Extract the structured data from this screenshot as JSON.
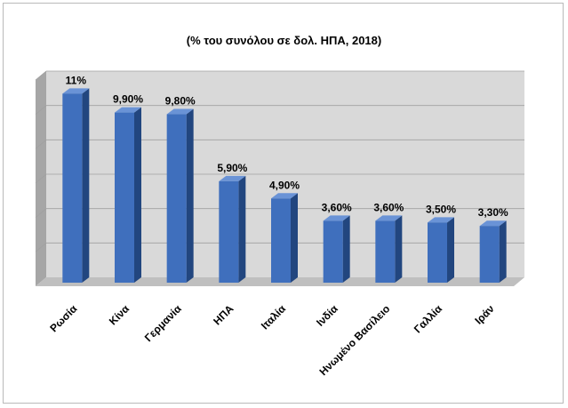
{
  "chart_data": {
    "type": "bar",
    "title": "(% του συνόλου σε δολ. ΗΠΑ, 2018)",
    "xlabel": "",
    "ylabel": "",
    "categories": [
      "Ρωσία",
      "Κίνα",
      "Γερμανία",
      "ΗΠΑ",
      "Ιταλία",
      "Ινδία",
      "Ηνωμένο Βασίλειο",
      "Γαλλία",
      "Ιράν"
    ],
    "values": [
      11,
      9.9,
      9.8,
      5.9,
      4.9,
      3.6,
      3.6,
      3.5,
      3.3
    ],
    "data_labels": [
      "11%",
      "9,90%",
      "9,80%",
      "5,90%",
      "4,90%",
      "3,60%",
      "3,60%",
      "3,50%",
      "3,30%"
    ],
    "ylim": [
      0,
      12
    ],
    "grid": true,
    "legend": "none",
    "colors": {
      "bar_front": "#3f6fbd",
      "bar_side": "#22467f",
      "bar_top": "#6a93d6",
      "wall": "#d9d9d9",
      "wall_side": "#a6a6a6",
      "floor": "#bfbfbf",
      "grid": "#a0a0a0"
    }
  }
}
